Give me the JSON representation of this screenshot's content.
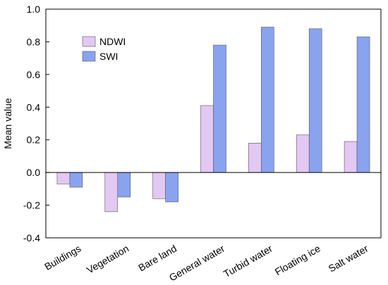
{
  "chart_data": {
    "type": "bar",
    "title": "",
    "xlabel": "",
    "ylabel": "Mean value",
    "ylim": [
      -0.4,
      1.0
    ],
    "yticks": [
      "-0.4",
      "-0.2",
      "0.0",
      "0.2",
      "0.4",
      "0.6",
      "0.8",
      "1.0"
    ],
    "categories": [
      "Buildings",
      "Vegetation",
      "Bare land",
      "General water",
      "Turbid water",
      "Floating ice",
      "Salt water"
    ],
    "series": [
      {
        "name": "NDWI",
        "color": "#e3c8f3",
        "values": [
          -0.07,
          -0.24,
          -0.16,
          0.41,
          0.18,
          0.23,
          0.19
        ]
      },
      {
        "name": "SWI",
        "color": "#8aa3ef",
        "values": [
          -0.09,
          -0.15,
          -0.18,
          0.78,
          0.89,
          0.88,
          0.83
        ]
      }
    ],
    "grid": false,
    "legend_position": "top-left",
    "zero_line": true
  }
}
